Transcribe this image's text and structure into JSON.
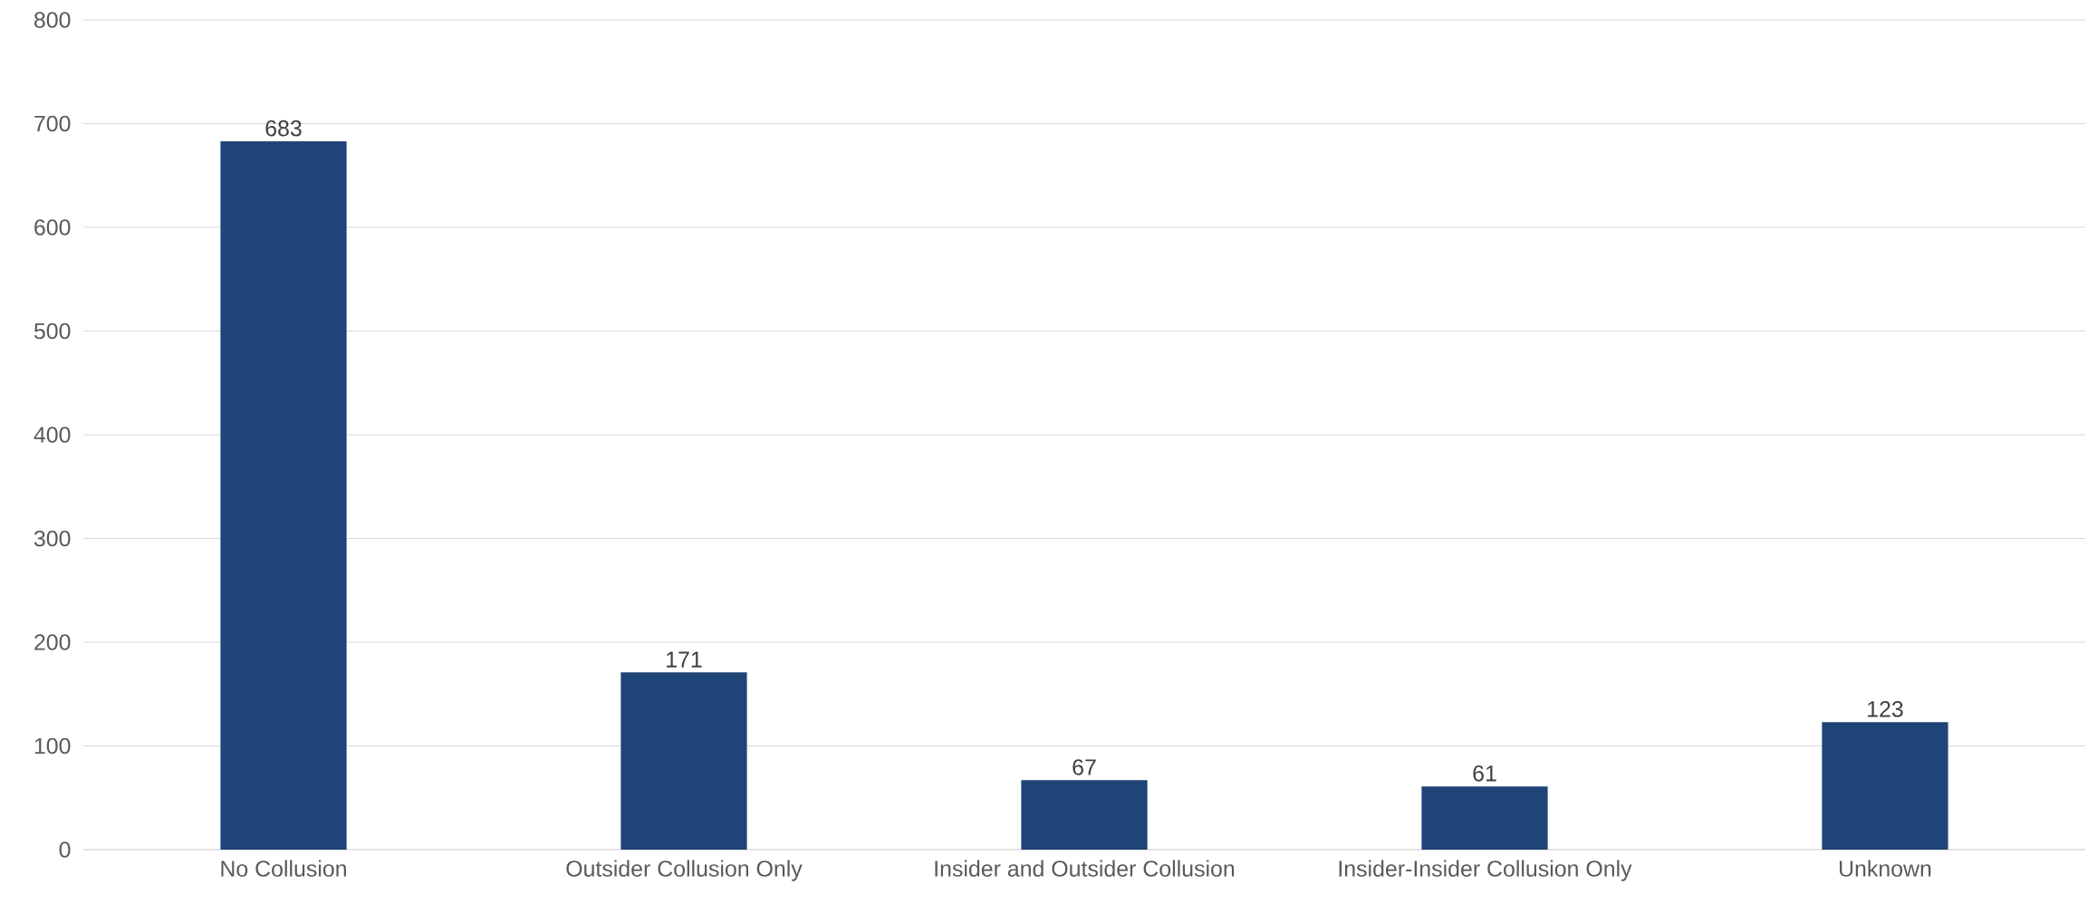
{
  "chart_data": {
    "type": "bar",
    "categories": [
      "No Collusion",
      "Outsider Collusion Only",
      "Insider and Outsider Collusion",
      "Insider-Insider Collusion Only",
      "Unknown"
    ],
    "values": [
      683,
      171,
      67,
      61,
      123
    ],
    "color": "#1f4477",
    "ylim": [
      0,
      800
    ],
    "yticks": [
      0,
      100,
      200,
      300,
      400,
      500,
      600,
      700,
      800
    ],
    "grid": "y",
    "data_labels": true
  }
}
